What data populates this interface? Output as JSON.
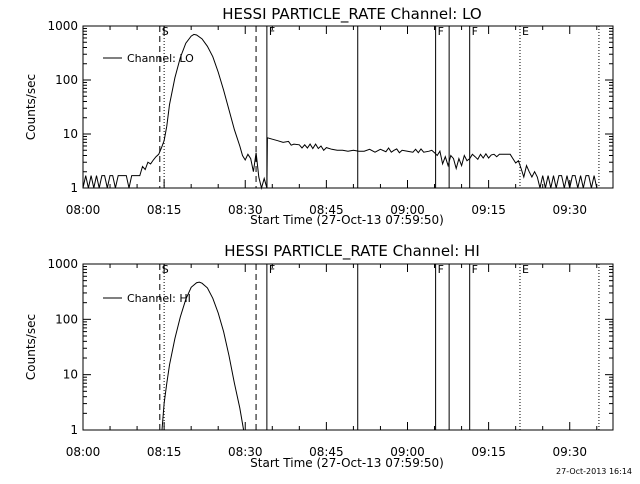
{
  "footer_timestamp": "27-Oct-2013 16:14",
  "chart_data": [
    {
      "type": "line",
      "title": "HESSI PARTICLE_RATE Channel: LO",
      "xlabel": "Start Time (27-Oct-13 07:59:50)",
      "ylabel": "Counts/sec",
      "yscale": "log",
      "ylim": [
        1,
        1000
      ],
      "xlim_minutes": [
        0,
        98
      ],
      "x_ticks": [
        "08:00",
        "08:15",
        "08:30",
        "08:45",
        "09:00",
        "09:15",
        "09:30"
      ],
      "y_ticks": [
        "1",
        "10",
        "100",
        "1000"
      ],
      "legend": "Channel: LO",
      "flags": [
        {
          "label": "S",
          "t": 14.2,
          "style": "dashed"
        },
        {
          "label": "",
          "t": 15.0,
          "style": "dotted"
        },
        {
          "label": "",
          "t": 32.0,
          "style": "dashed"
        },
        {
          "label": "F",
          "t": 34.0,
          "style": "solid"
        },
        {
          "label": "",
          "t": 50.8,
          "style": "solid"
        },
        {
          "label": "F",
          "t": 65.2,
          "style": "solid"
        },
        {
          "label": "",
          "t": 67.7,
          "style": "solid"
        },
        {
          "label": "F",
          "t": 71.5,
          "style": "solid"
        },
        {
          "label": "E",
          "t": 80.8,
          "style": "dotted"
        },
        {
          "label": "",
          "t": 95.4,
          "style": "dotted"
        }
      ],
      "series": [
        {
          "points": [
            [
              0,
              1
            ],
            [
              0.5,
              1.7
            ],
            [
              1,
              1
            ],
            [
              1.5,
              1.7
            ],
            [
              2,
              1
            ],
            [
              2.5,
              1.7
            ],
            [
              3,
              1
            ],
            [
              3.5,
              1.7
            ],
            [
              4,
              1.7
            ],
            [
              4.5,
              1
            ],
            [
              5,
              1.7
            ],
            [
              5.5,
              1.7
            ],
            [
              6,
              1
            ],
            [
              6.5,
              1.7
            ],
            [
              7,
              1.7
            ],
            [
              7.5,
              1.7
            ],
            [
              8,
              1.7
            ],
            [
              8.5,
              1
            ],
            [
              9,
              1.7
            ],
            [
              9.5,
              1.7
            ],
            [
              10,
              1.7
            ],
            [
              10.5,
              1.7
            ],
            [
              11,
              2.5
            ],
            [
              11.5,
              2.2
            ],
            [
              12,
              3
            ],
            [
              12.5,
              2.8
            ],
            [
              13,
              3.3
            ],
            [
              13.5,
              3.8
            ],
            [
              14,
              4.2
            ],
            [
              14.5,
              5.5
            ],
            [
              15,
              7.5
            ],
            [
              15.5,
              14
            ],
            [
              16,
              35
            ],
            [
              17,
              110
            ],
            [
              18,
              260
            ],
            [
              19,
              480
            ],
            [
              20,
              650
            ],
            [
              20.5,
              700
            ],
            [
              21,
              680
            ],
            [
              22,
              580
            ],
            [
              23,
              420
            ],
            [
              24,
              270
            ],
            [
              25,
              140
            ],
            [
              26,
              65
            ],
            [
              27,
              28
            ],
            [
              28,
              12
            ],
            [
              29,
              6
            ],
            [
              29.5,
              4
            ],
            [
              30,
              3.3
            ],
            [
              30.5,
              4.2
            ],
            [
              31,
              3.5
            ],
            [
              31.5,
              2
            ],
            [
              32,
              4.5
            ],
            [
              32.5,
              1.6
            ],
            [
              33,
              1
            ],
            [
              33.5,
              1.5
            ],
            [
              34,
              1
            ],
            [
              34.1,
              8.5
            ],
            [
              35,
              8
            ],
            [
              36,
              7.5
            ],
            [
              37,
              7
            ],
            [
              38,
              7.3
            ],
            [
              38.5,
              6.2
            ],
            [
              39,
              6.5
            ],
            [
              40,
              6.3
            ],
            [
              40.5,
              5.5
            ],
            [
              41,
              6.3
            ],
            [
              41.5,
              5.5
            ],
            [
              42,
              6.5
            ],
            [
              42.5,
              5.4
            ],
            [
              43,
              6.5
            ],
            [
              43.5,
              5.4
            ],
            [
              44,
              6
            ],
            [
              44.5,
              5
            ],
            [
              45,
              5.6
            ],
            [
              46,
              5.2
            ],
            [
              47,
              5
            ],
            [
              48,
              5
            ],
            [
              49,
              4.8
            ],
            [
              50,
              5
            ],
            [
              51,
              4.8
            ],
            [
              52,
              4.8
            ],
            [
              53,
              5.2
            ],
            [
              54,
              4.6
            ],
            [
              55,
              5.2
            ],
            [
              56,
              4.7
            ],
            [
              56.5,
              5.5
            ],
            [
              57,
              4.6
            ],
            [
              57.5,
              5
            ],
            [
              58,
              5.3
            ],
            [
              58.5,
              4.5
            ],
            [
              59,
              5
            ],
            [
              60,
              4.8
            ],
            [
              61,
              4.6
            ],
            [
              61.5,
              5.2
            ],
            [
              62,
              4.5
            ],
            [
              62.5,
              5.3
            ],
            [
              63,
              4.6
            ],
            [
              64,
              4.8
            ],
            [
              64.5,
              5
            ],
            [
              65,
              4.5
            ],
            [
              65.5,
              4
            ],
            [
              66,
              4.8
            ],
            [
              66.5,
              2.8
            ],
            [
              67,
              3.8
            ],
            [
              67.5,
              2.6
            ],
            [
              68,
              4
            ],
            [
              68.5,
              3.5
            ],
            [
              69,
              2.3
            ],
            [
              69.5,
              3.5
            ],
            [
              70,
              2.6
            ],
            [
              70.5,
              4
            ],
            [
              71,
              3.2
            ],
            [
              71.5,
              3.5
            ],
            [
              72,
              4.2
            ],
            [
              72.5,
              3.8
            ],
            [
              73,
              3.4
            ],
            [
              73.5,
              4.2
            ],
            [
              74,
              3.6
            ],
            [
              74.5,
              4.3
            ],
            [
              75,
              3.6
            ],
            [
              75.5,
              4.1
            ],
            [
              76,
              4.2
            ],
            [
              76.5,
              3.8
            ],
            [
              77,
              4.2
            ],
            [
              77.5,
              4.2
            ],
            [
              78,
              4.2
            ],
            [
              78.5,
              4.2
            ],
            [
              79,
              4.2
            ],
            [
              79.5,
              3.5
            ],
            [
              80,
              2.9
            ],
            [
              80.5,
              3.2
            ],
            [
              81,
              2.3
            ],
            [
              81.5,
              1.6
            ],
            [
              82,
              2.6
            ],
            [
              82.5,
              2
            ],
            [
              83,
              1.6
            ],
            [
              83.5,
              2
            ],
            [
              84,
              1.6
            ],
            [
              84.5,
              1
            ],
            [
              85,
              1.7
            ],
            [
              85.5,
              1
            ],
            [
              86,
              1.7
            ],
            [
              86.5,
              1
            ],
            [
              87,
              1.7
            ],
            [
              87.5,
              1
            ],
            [
              88,
              1.7
            ],
            [
              88.5,
              1.7
            ],
            [
              89,
              1
            ],
            [
              89.5,
              1.7
            ],
            [
              90,
              1
            ],
            [
              90.5,
              1.7
            ],
            [
              91,
              1.7
            ],
            [
              91.5,
              1
            ],
            [
              92,
              1.7
            ],
            [
              92.5,
              1
            ],
            [
              93,
              1.7
            ],
            [
              93.5,
              1.7
            ],
            [
              94,
              1
            ],
            [
              94.5,
              1.7
            ],
            [
              95,
              1
            ]
          ]
        }
      ]
    },
    {
      "type": "line",
      "title": "HESSI PARTICLE_RATE Channel: HI",
      "xlabel": "Start Time (27-Oct-13 07:59:50)",
      "ylabel": "Counts/sec",
      "yscale": "log",
      "ylim": [
        1,
        1000
      ],
      "xlim_minutes": [
        0,
        98
      ],
      "x_ticks": [
        "08:00",
        "08:15",
        "08:30",
        "08:45",
        "09:00",
        "09:15",
        "09:30"
      ],
      "y_ticks": [
        "1",
        "10",
        "100",
        "1000"
      ],
      "legend": "Channel: HI",
      "flags": [
        {
          "label": "S",
          "t": 14.2,
          "style": "dashed"
        },
        {
          "label": "",
          "t": 15.0,
          "style": "dotted"
        },
        {
          "label": "",
          "t": 32.0,
          "style": "dashed"
        },
        {
          "label": "F",
          "t": 34.0,
          "style": "solid"
        },
        {
          "label": "",
          "t": 50.8,
          "style": "solid"
        },
        {
          "label": "F",
          "t": 65.2,
          "style": "solid"
        },
        {
          "label": "",
          "t": 67.7,
          "style": "solid"
        },
        {
          "label": "F",
          "t": 71.5,
          "style": "solid"
        },
        {
          "label": "E",
          "t": 80.8,
          "style": "dotted"
        },
        {
          "label": "",
          "t": 95.4,
          "style": "dotted"
        }
      ],
      "series": [
        {
          "points": [
            [
              14.6,
              1
            ],
            [
              15,
              3
            ],
            [
              15.5,
              7
            ],
            [
              16,
              15
            ],
            [
              17,
              45
            ],
            [
              18,
              110
            ],
            [
              19,
              230
            ],
            [
              20,
              380
            ],
            [
              21,
              460
            ],
            [
              21.5,
              470
            ],
            [
              22,
              450
            ],
            [
              23,
              370
            ],
            [
              24,
              240
            ],
            [
              25,
              130
            ],
            [
              26,
              60
            ],
            [
              27,
              22
            ],
            [
              28,
              7
            ],
            [
              29,
              2.5
            ],
            [
              29.7,
              1
            ]
          ]
        }
      ]
    }
  ]
}
